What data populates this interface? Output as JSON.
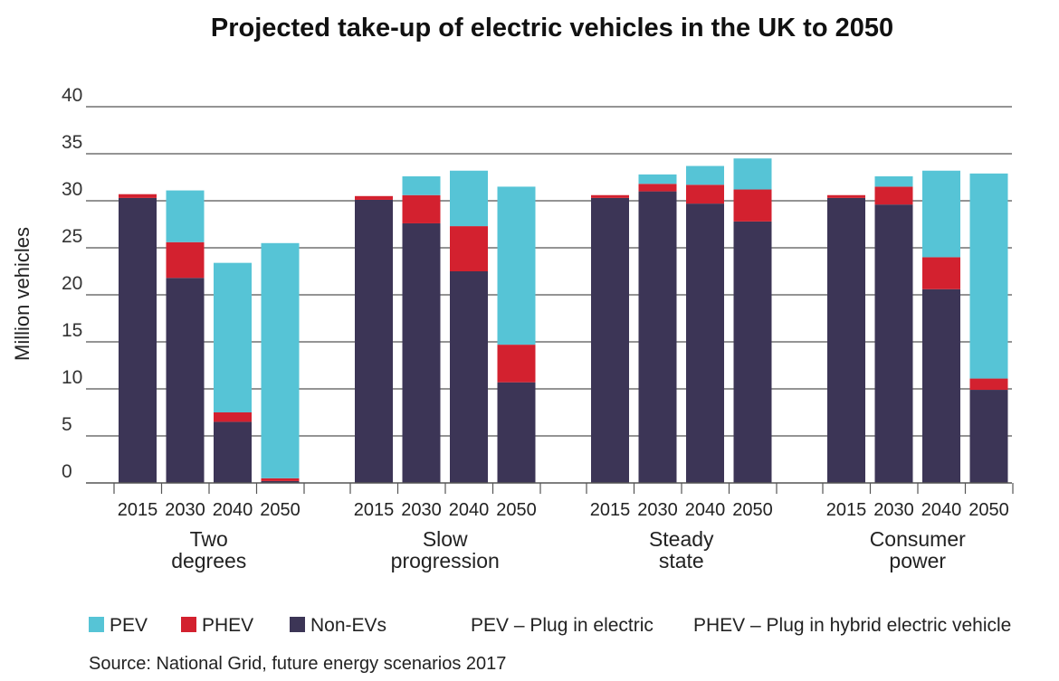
{
  "chart_data": {
    "type": "bar",
    "stacked": true,
    "title": "Projected take-up of electric vehicles in the UK to 2050",
    "ylabel": "Million vehicles",
    "ylim": [
      0,
      40
    ],
    "yticks": [
      "0",
      "5",
      "10",
      "15",
      "20",
      "25",
      "30",
      "35",
      "40"
    ],
    "grid": true,
    "groups": [
      {
        "label_lines": [
          "Two",
          "degrees"
        ],
        "categories": [
          "2015",
          "2030",
          "2040",
          "2050"
        ]
      },
      {
        "label_lines": [
          "Slow",
          "progression"
        ],
        "categories": [
          "2015",
          "2030",
          "2040",
          "2050"
        ]
      },
      {
        "label_lines": [
          "Steady",
          "state"
        ],
        "categories": [
          "2015",
          "2030",
          "2040",
          "2050"
        ]
      },
      {
        "label_lines": [
          "Consumer",
          "power"
        ],
        "categories": [
          "2015",
          "2030",
          "2040",
          "2050"
        ]
      }
    ],
    "series": [
      {
        "name": "Non-EVs",
        "color": "#3c3556",
        "values": [
          [
            30.3,
            21.8,
            6.5,
            0.2
          ],
          [
            30.1,
            27.6,
            22.5,
            10.7
          ],
          [
            30.3,
            31.0,
            29.7,
            27.8
          ],
          [
            30.3,
            29.6,
            20.6,
            9.9
          ]
        ]
      },
      {
        "name": "PHEV",
        "color": "#d3212f",
        "values": [
          [
            0.4,
            3.8,
            1.0,
            0.3
          ],
          [
            0.4,
            3.0,
            4.8,
            4.0
          ],
          [
            0.3,
            0.8,
            2.0,
            3.4
          ],
          [
            0.3,
            1.9,
            3.4,
            1.2
          ]
        ]
      },
      {
        "name": "PEV",
        "color": "#56c4d6",
        "values": [
          [
            0.0,
            5.5,
            15.9,
            25.0
          ],
          [
            0.0,
            2.0,
            5.9,
            16.8
          ],
          [
            0.0,
            1.0,
            2.0,
            3.3
          ],
          [
            0.0,
            1.1,
            9.2,
            21.8
          ]
        ]
      }
    ]
  },
  "legend": {
    "items": [
      {
        "label": "PEV",
        "color": "#56c4d6"
      },
      {
        "label": "PHEV",
        "color": "#d3212f"
      },
      {
        "label": "Non-EVs",
        "color": "#3c3556"
      }
    ],
    "notes": [
      "PEV – Plug in electric",
      "PHEV – Plug in hybrid electric vehicle"
    ]
  },
  "source": "Source: National Grid, future energy scenarios 2017"
}
